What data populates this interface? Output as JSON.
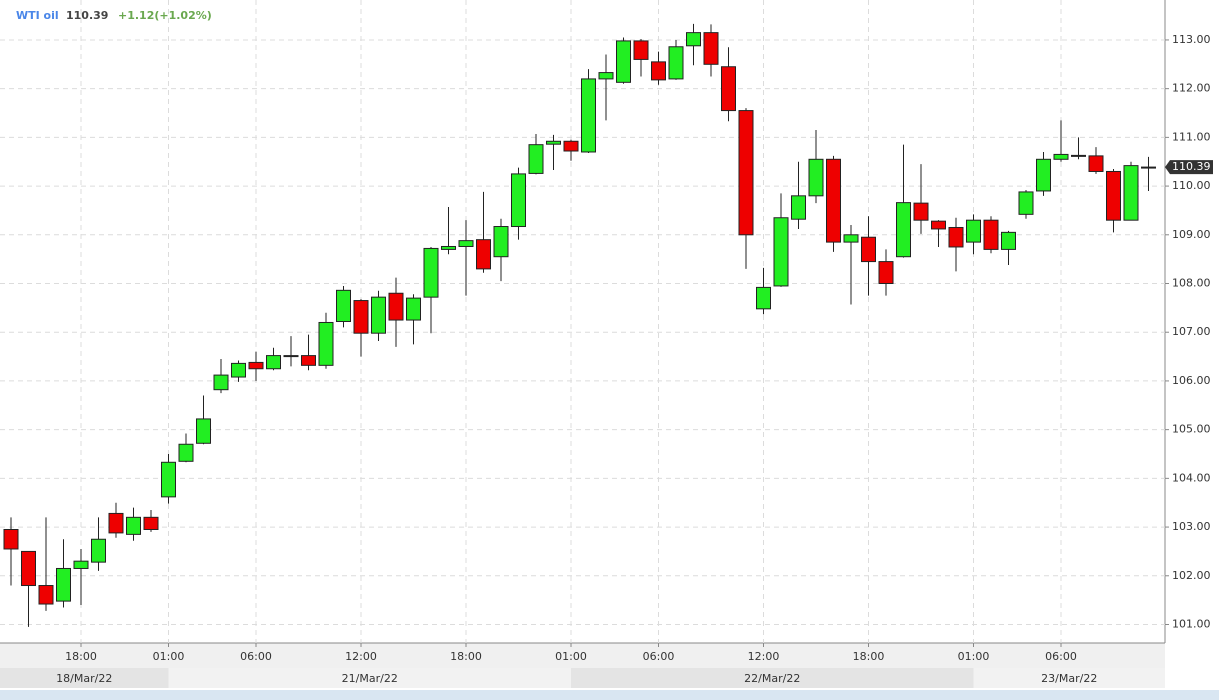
{
  "chart_data": {
    "type": "candlestick",
    "title": "WTI oil",
    "last_price": 110.39,
    "change": "+1.12(+1.02%)",
    "categories": [
      null,
      null,
      null,
      null,
      "18:00",
      null,
      null,
      null,
      null,
      "01:00",
      null,
      null,
      null,
      null,
      "06:00",
      null,
      null,
      null,
      null,
      null,
      "12:00",
      null,
      null,
      null,
      null,
      null,
      "18:00",
      null,
      null,
      null,
      null,
      null,
      "01:00",
      null,
      null,
      null,
      null,
      "06:00",
      null,
      null,
      null,
      null,
      null,
      "12:00",
      null,
      null,
      null,
      null,
      null,
      "18:00",
      null,
      null,
      null,
      null,
      null,
      "01:00",
      null,
      null,
      null,
      null,
      "06:00",
      null,
      null,
      null,
      null,
      null
    ],
    "dates": [
      "18/Mar/22",
      "21/Mar/22",
      "22/Mar/22",
      "23/Mar/22"
    ],
    "open": [
      102.95,
      102.5,
      101.8,
      101.48,
      102.15,
      102.28,
      103.28,
      102.85,
      103.2,
      103.62,
      104.35,
      104.72,
      105.82,
      106.08,
      106.38,
      106.25,
      106.5,
      106.52,
      106.32,
      107.22,
      107.65,
      106.98,
      107.8,
      107.25,
      107.72,
      108.7,
      108.76,
      108.9,
      108.55,
      109.17,
      110.26,
      110.86,
      110.92,
      110.7,
      112.2,
      112.13,
      112.98,
      112.55,
      112.2,
      112.88,
      113.15,
      112.45,
      111.55,
      107.48,
      107.95,
      109.32,
      109.8,
      110.55,
      108.85,
      108.95,
      108.45,
      108.55,
      109.65,
      109.28,
      109.15,
      108.85,
      109.3,
      108.7,
      109.42,
      109.9,
      110.55,
      110.62,
      110.62,
      110.3,
      109.3,
      110.38
    ],
    "high": [
      103.2,
      102.5,
      103.2,
      102.75,
      102.55,
      103.2,
      103.5,
      103.4,
      103.35,
      104.5,
      104.92,
      105.7,
      106.45,
      106.42,
      106.6,
      106.68,
      106.92,
      106.95,
      107.4,
      107.95,
      107.68,
      107.85,
      108.12,
      107.78,
      108.75,
      109.57,
      109.3,
      109.88,
      109.33,
      110.38,
      111.07,
      111.05,
      110.95,
      112.4,
      112.7,
      113.05,
      113.02,
      112.76,
      113.0,
      113.33,
      113.32,
      112.85,
      111.6,
      108.32,
      109.85,
      110.5,
      111.15,
      110.62,
      109.2,
      109.38,
      108.7,
      110.85,
      110.45,
      109.3,
      109.35,
      109.42,
      109.38,
      109.08,
      109.92,
      110.7,
      111.35,
      111.0,
      110.8,
      110.35,
      110.5,
      110.6
    ],
    "low": [
      101.8,
      100.95,
      101.28,
      101.35,
      101.4,
      102.1,
      102.78,
      102.72,
      102.9,
      103.48,
      104.33,
      104.7,
      105.75,
      105.98,
      106.0,
      106.22,
      106.3,
      106.22,
      106.25,
      107.1,
      106.5,
      106.82,
      106.7,
      106.75,
      106.98,
      108.6,
      107.75,
      108.22,
      108.05,
      108.9,
      110.24,
      110.33,
      110.52,
      110.68,
      111.35,
      112.1,
      112.25,
      112.08,
      112.18,
      112.48,
      112.25,
      111.33,
      108.3,
      107.37,
      107.93,
      109.12,
      109.65,
      108.65,
      107.57,
      107.75,
      107.75,
      108.53,
      109.02,
      108.75,
      108.25,
      108.6,
      108.62,
      108.38,
      109.33,
      109.8,
      110.5,
      110.55,
      110.25,
      109.05,
      109.3,
      109.9
    ],
    "close": [
      102.55,
      101.8,
      101.42,
      102.15,
      102.3,
      102.75,
      102.88,
      103.2,
      102.95,
      104.33,
      104.7,
      105.22,
      106.12,
      106.36,
      106.25,
      106.52,
      106.52,
      106.32,
      107.2,
      107.86,
      106.98,
      107.72,
      107.25,
      107.7,
      108.72,
      108.76,
      108.88,
      108.3,
      109.17,
      110.25,
      110.85,
      110.92,
      110.72,
      112.2,
      112.33,
      112.98,
      112.6,
      112.18,
      112.86,
      113.15,
      112.5,
      111.55,
      109.0,
      107.92,
      109.35,
      109.8,
      110.55,
      108.85,
      109.0,
      108.45,
      108.0,
      109.66,
      109.3,
      109.12,
      108.75,
      109.3,
      108.7,
      109.05,
      109.88,
      110.55,
      110.65,
      110.63,
      110.3,
      109.3,
      110.42,
      110.39
    ],
    "up_color": "#22ee22",
    "down_color": "#ee0000",
    "ylim": [
      100.62,
      113.82
    ],
    "yticks": [
      {
        "value": 101,
        "label": "101.00"
      },
      {
        "value": 102,
        "label": "102.00"
      },
      {
        "value": 103,
        "label": "103.00"
      },
      {
        "value": 104,
        "label": "104.00"
      },
      {
        "value": 105,
        "label": "105.00"
      },
      {
        "value": 106,
        "label": "106.00"
      },
      {
        "value": 107,
        "label": "107.00"
      },
      {
        "value": 108,
        "label": "108.00"
      },
      {
        "value": 109,
        "label": "109.00"
      },
      {
        "value": 110,
        "label": "110.00"
      },
      {
        "value": 111,
        "label": "111.00"
      },
      {
        "value": 112,
        "label": "112.00"
      },
      {
        "value": 113,
        "label": "113.00"
      }
    ],
    "grid": true
  }
}
